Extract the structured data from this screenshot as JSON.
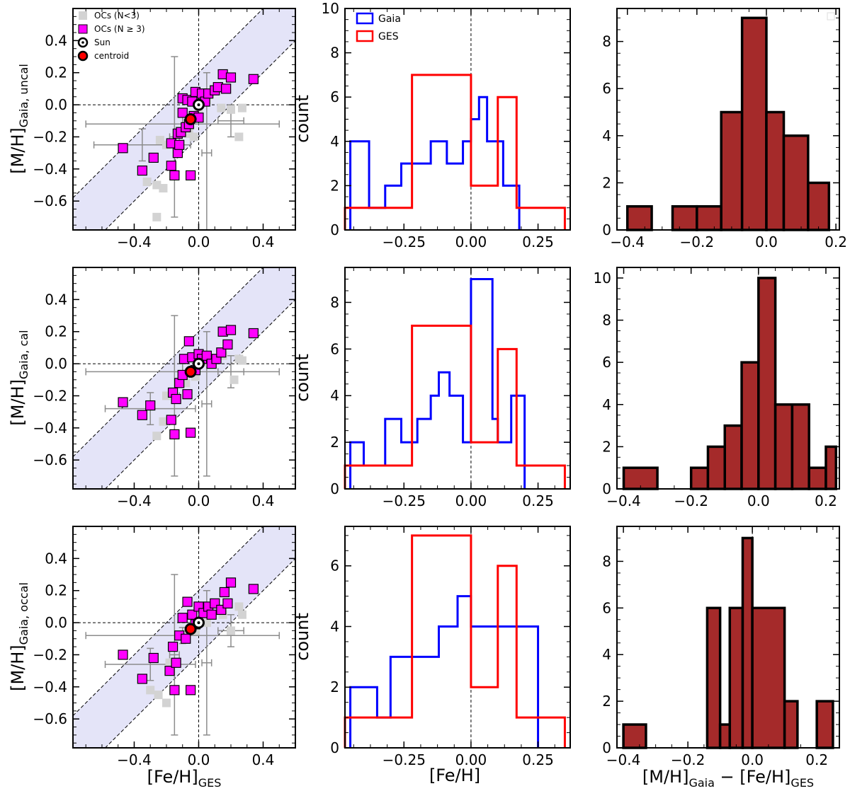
{
  "figure": {
    "rows": [
      {
        "ylabel_main": "[M/H]",
        "ylabel_sub": "Gaia, uncal"
      },
      {
        "ylabel_main": "[M/H]",
        "ylabel_sub": "Gaia, cal"
      },
      {
        "ylabel_main": "[M/H]",
        "ylabel_sub": "Gaia, occal"
      }
    ],
    "scatter_xlabel_main": "[Fe/H]",
    "scatter_xlabel_sub": "GES",
    "hist_xlabel": "[Fe/H]",
    "hist_ylabel": "count",
    "diff_xlabel": {
      "a": "[M/H]",
      "a_sub": "Gaia",
      "minus": " − ",
      "b": "[Fe/H]",
      "b_sub": "GES"
    }
  },
  "colors": {
    "magenta": "#ff00ff",
    "gray": "#d3d3d3",
    "errbar": "#8c8c8c",
    "band": "#e4e4f8",
    "gaia": "#0000ff",
    "ges": "#ff0000",
    "diff_fill": "#a52a2a"
  },
  "legends": {
    "scatter": [
      {
        "label": "OCs (N<3)",
        "marker": "gray-square"
      },
      {
        "label": "OCs (N ≥ 3)",
        "marker": "magenta-square"
      },
      {
        "label": "Sun",
        "marker": "sun-symbol"
      },
      {
        "label": "centroid",
        "marker": "red-circle"
      }
    ],
    "hist": [
      {
        "label": "Gaia",
        "color": "#0000ff"
      },
      {
        "label": "GES",
        "color": "#ff0000"
      }
    ]
  },
  "chart_data": [
    {
      "type": "scatter",
      "row": 0,
      "xlim": [
        -0.78,
        0.6
      ],
      "ylim": [
        -0.78,
        0.6
      ],
      "xticks": [
        -0.4,
        0.0,
        0.4
      ],
      "yticks": [
        -0.6,
        -0.4,
        -0.2,
        0.0,
        0.2,
        0.4
      ],
      "band_offsets": [
        -0.2,
        0.2
      ],
      "sun": [
        0.0,
        0.0
      ],
      "centroid": [
        -0.05,
        -0.09
      ],
      "magenta": [
        [
          -0.47,
          -0.27
        ],
        [
          -0.35,
          -0.41
        ],
        [
          -0.28,
          -0.33
        ],
        [
          -0.17,
          -0.38
        ],
        [
          -0.17,
          -0.24
        ],
        [
          -0.15,
          -0.44
        ],
        [
          -0.13,
          -0.3
        ],
        [
          -0.13,
          -0.18
        ],
        [
          -0.12,
          -0.25
        ],
        [
          -0.11,
          -0.17
        ],
        [
          -0.1,
          -0.05
        ],
        [
          -0.1,
          0.04
        ],
        [
          -0.08,
          -0.14
        ],
        [
          -0.07,
          0.03
        ],
        [
          -0.06,
          -0.12
        ],
        [
          -0.05,
          -0.44
        ],
        [
          -0.04,
          0.02
        ],
        [
          -0.03,
          -0.07
        ],
        [
          -0.02,
          0.08
        ],
        [
          0.0,
          -0.08
        ],
        [
          0.02,
          0.07
        ],
        [
          0.04,
          0.02
        ],
        [
          0.06,
          0.07
        ],
        [
          0.1,
          0.09
        ],
        [
          0.12,
          0.11
        ],
        [
          0.15,
          0.19
        ],
        [
          0.17,
          0.1
        ],
        [
          0.2,
          0.17
        ],
        [
          0.34,
          0.16
        ]
      ],
      "gray": [
        [
          -0.32,
          -0.48
        ],
        [
          -0.26,
          -0.5
        ],
        [
          -0.22,
          -0.52
        ],
        [
          -0.26,
          -0.7
        ],
        [
          -0.24,
          -0.22
        ],
        [
          -0.2,
          -0.25
        ],
        [
          -0.06,
          -0.18
        ],
        [
          -0.03,
          -0.2
        ],
        [
          0.0,
          -0.02
        ],
        [
          0.05,
          0.03
        ],
        [
          0.14,
          -0.02
        ],
        [
          0.2,
          -0.03
        ],
        [
          0.25,
          -0.2
        ],
        [
          0.27,
          -0.02
        ]
      ],
      "errbars": [
        [
          -0.1,
          -0.12,
          0.6,
          0.05
        ],
        [
          -0.15,
          -0.2,
          0.03,
          0.5
        ],
        [
          0.05,
          -0.3,
          0.03,
          0.5
        ],
        [
          -0.35,
          -0.25,
          0.3,
          0.1
        ],
        [
          0.2,
          -0.1,
          0.08,
          0.1
        ]
      ]
    },
    {
      "type": "scatter",
      "row": 1,
      "xlim": [
        -0.78,
        0.6
      ],
      "ylim": [
        -0.78,
        0.6
      ],
      "xticks": [
        -0.4,
        0.0,
        0.4
      ],
      "yticks": [
        -0.6,
        -0.4,
        -0.2,
        0.0,
        0.2,
        0.4
      ],
      "band_offsets": [
        -0.2,
        0.2
      ],
      "sun": [
        0.0,
        0.0
      ],
      "centroid": [
        -0.05,
        -0.05
      ],
      "magenta": [
        [
          -0.47,
          -0.24
        ],
        [
          -0.35,
          -0.32
        ],
        [
          -0.3,
          -0.26
        ],
        [
          -0.17,
          -0.35
        ],
        [
          -0.16,
          -0.18
        ],
        [
          -0.15,
          -0.44
        ],
        [
          -0.14,
          -0.22
        ],
        [
          -0.12,
          -0.12
        ],
        [
          -0.1,
          -0.07
        ],
        [
          -0.09,
          0.03
        ],
        [
          -0.07,
          -0.19
        ],
        [
          -0.06,
          0.14
        ],
        [
          -0.05,
          -0.43
        ],
        [
          -0.04,
          0.04
        ],
        [
          -0.02,
          -0.04
        ],
        [
          0.0,
          0.06
        ],
        [
          0.02,
          0.03
        ],
        [
          0.05,
          0.05
        ],
        [
          0.08,
          0.0
        ],
        [
          0.11,
          0.03
        ],
        [
          0.14,
          0.07
        ],
        [
          0.15,
          0.2
        ],
        [
          0.18,
          0.12
        ],
        [
          0.2,
          0.21
        ],
        [
          0.34,
          0.19
        ]
      ],
      "gray": [
        [
          -0.26,
          -0.45
        ],
        [
          -0.22,
          -0.36
        ],
        [
          -0.2,
          -0.2
        ],
        [
          -0.08,
          -0.12
        ],
        [
          -0.02,
          -0.08
        ],
        [
          0.05,
          0.01
        ],
        [
          0.15,
          0.05
        ],
        [
          0.22,
          -0.1
        ],
        [
          0.25,
          0.03
        ],
        [
          0.27,
          0.02
        ]
      ],
      "errbars": [
        [
          -0.1,
          -0.05,
          0.6,
          0.05
        ],
        [
          -0.15,
          -0.2,
          0.03,
          0.5
        ],
        [
          0.05,
          -0.25,
          0.03,
          0.45
        ],
        [
          -0.3,
          -0.28,
          0.28,
          0.1
        ],
        [
          0.2,
          -0.05,
          0.08,
          0.1
        ]
      ]
    },
    {
      "type": "scatter",
      "row": 2,
      "xlim": [
        -0.78,
        0.6
      ],
      "ylim": [
        -0.78,
        0.6
      ],
      "xticks": [
        -0.4,
        0.0,
        0.4
      ],
      "yticks": [
        -0.6,
        -0.4,
        -0.2,
        0.0,
        0.2,
        0.4
      ],
      "band_offsets": [
        -0.2,
        0.2
      ],
      "sun": [
        0.0,
        0.0
      ],
      "centroid": [
        -0.05,
        -0.04
      ],
      "magenta": [
        [
          -0.47,
          -0.2
        ],
        [
          -0.35,
          -0.35
        ],
        [
          -0.28,
          -0.22
        ],
        [
          -0.18,
          -0.3
        ],
        [
          -0.16,
          -0.15
        ],
        [
          -0.15,
          -0.42
        ],
        [
          -0.14,
          -0.25
        ],
        [
          -0.12,
          -0.08
        ],
        [
          -0.1,
          0.03
        ],
        [
          -0.08,
          -0.1
        ],
        [
          -0.07,
          0.13
        ],
        [
          -0.05,
          -0.42
        ],
        [
          -0.04,
          0.05
        ],
        [
          -0.02,
          -0.01
        ],
        [
          0.0,
          0.1
        ],
        [
          0.03,
          0.06
        ],
        [
          0.06,
          0.1
        ],
        [
          0.08,
          0.05
        ],
        [
          0.1,
          0.12
        ],
        [
          0.14,
          0.08
        ],
        [
          0.16,
          0.19
        ],
        [
          0.18,
          0.12
        ],
        [
          0.2,
          0.25
        ],
        [
          0.34,
          0.21
        ]
      ],
      "gray": [
        [
          -0.3,
          -0.42
        ],
        [
          -0.25,
          -0.45
        ],
        [
          -0.2,
          -0.5
        ],
        [
          -0.18,
          -0.25
        ],
        [
          -0.08,
          -0.1
        ],
        [
          -0.02,
          -0.05
        ],
        [
          0.05,
          0.0
        ],
        [
          0.15,
          0.05
        ],
        [
          0.2,
          -0.05
        ],
        [
          0.25,
          0.1
        ],
        [
          0.27,
          0.05
        ]
      ],
      "errbars": [
        [
          -0.1,
          -0.08,
          0.6,
          0.05
        ],
        [
          -0.15,
          -0.2,
          0.03,
          0.5
        ],
        [
          0.05,
          -0.25,
          0.03,
          0.45
        ],
        [
          -0.3,
          -0.26,
          0.28,
          0.1
        ],
        [
          0.2,
          -0.05,
          0.08,
          0.1
        ]
      ]
    },
    {
      "type": "histogram-step",
      "row": 0,
      "xlim": [
        -0.47,
        0.37
      ],
      "ylim": [
        0,
        10
      ],
      "xticks": [
        -0.25,
        0.0,
        0.25
      ],
      "xtick_labels": [
        "−0.25",
        "0.00",
        "0.25"
      ],
      "yticks": [
        0,
        2,
        4,
        6,
        8,
        10
      ],
      "vline": 0.0,
      "series": [
        {
          "name": "Gaia",
          "edges": [
            -0.45,
            -0.38,
            -0.32,
            -0.26,
            -0.21,
            -0.15,
            -0.09,
            -0.03,
            0.0,
            0.03,
            0.06,
            0.12,
            0.18
          ],
          "counts": [
            4,
            1,
            2,
            3,
            3,
            4,
            3,
            4,
            5,
            6,
            4,
            2
          ]
        },
        {
          "name": "GES",
          "edges": [
            -0.47,
            -0.22,
            0.0,
            0.03,
            0.1,
            0.17,
            0.35
          ],
          "counts": [
            1,
            7,
            2,
            2,
            6,
            1
          ]
        }
      ]
    },
    {
      "type": "histogram-step",
      "row": 1,
      "xlim": [
        -0.47,
        0.37
      ],
      "ylim": [
        0,
        9.5
      ],
      "xticks": [
        -0.25,
        0.0,
        0.25
      ],
      "xtick_labels": [
        "−0.25",
        "0.00",
        "0.25"
      ],
      "yticks": [
        0,
        2,
        4,
        6,
        8
      ],
      "vline": 0.0,
      "series": [
        {
          "name": "Gaia",
          "edges": [
            -0.45,
            -0.4,
            -0.32,
            -0.26,
            -0.2,
            -0.15,
            -0.12,
            -0.08,
            -0.03,
            0.0,
            0.08,
            0.1,
            0.15,
            0.2
          ],
          "counts": [
            2,
            1,
            3,
            2,
            3,
            4,
            5,
            4,
            2,
            9,
            3,
            2,
            4
          ]
        },
        {
          "name": "GES",
          "edges": [
            -0.47,
            -0.22,
            0.0,
            0.03,
            0.1,
            0.17,
            0.35
          ],
          "counts": [
            1,
            7,
            2,
            2,
            6,
            1
          ]
        }
      ]
    },
    {
      "type": "histogram-step",
      "row": 2,
      "xlim": [
        -0.47,
        0.37
      ],
      "ylim": [
        0,
        7.3
      ],
      "xticks": [
        -0.25,
        0.0,
        0.25
      ],
      "xtick_labels": [
        "−0.25",
        "0.00",
        "0.25"
      ],
      "yticks": [
        0,
        2,
        4,
        6
      ],
      "vline": 0.0,
      "series": [
        {
          "name": "Gaia",
          "edges": [
            -0.45,
            -0.42,
            -0.35,
            -0.3,
            -0.2,
            -0.12,
            -0.05,
            0.0,
            0.05,
            0.15,
            0.25
          ],
          "counts": [
            2,
            2,
            1,
            3,
            3,
            4,
            5,
            4,
            4,
            4
          ]
        },
        {
          "name": "GES",
          "edges": [
            -0.47,
            -0.22,
            0.0,
            0.02,
            0.1,
            0.17,
            0.35
          ],
          "counts": [
            1,
            7,
            2,
            2,
            6,
            1
          ]
        }
      ]
    },
    {
      "type": "histogram-filled",
      "row": 0,
      "xlim": [
        -0.43,
        0.21
      ],
      "ylim": [
        0,
        9.4
      ],
      "xticks": [
        -0.4,
        -0.2,
        0.0,
        0.2
      ],
      "xtick_labels": [
        "−0.4",
        "−0.2",
        "0.0",
        "0.2"
      ],
      "yticks": [
        0,
        2,
        4,
        6,
        8
      ],
      "vline": 0.0,
      "edges": [
        -0.4,
        -0.33,
        -0.27,
        -0.2,
        -0.13,
        -0.07,
        0.0,
        0.05,
        0.12,
        0.18
      ],
      "counts": [
        1,
        0,
        1,
        1,
        5,
        9,
        5,
        4,
        2
      ]
    },
    {
      "type": "histogram-filled",
      "row": 1,
      "xlim": [
        -0.42,
        0.24
      ],
      "ylim": [
        0,
        10.5
      ],
      "xticks": [
        -0.4,
        -0.2,
        0.0,
        0.2
      ],
      "xtick_labels": [
        "−0.4",
        "−0.2",
        "0.0",
        "0.2"
      ],
      "yticks": [
        0,
        2,
        4,
        6,
        8,
        10
      ],
      "vline": 0.0,
      "edges": [
        -0.4,
        -0.3,
        -0.2,
        -0.15,
        -0.1,
        -0.05,
        0.0,
        0.05,
        0.1,
        0.15,
        0.2,
        0.23
      ],
      "counts": [
        1,
        0,
        1,
        2,
        3,
        6,
        10,
        4,
        4,
        1,
        2
      ]
    },
    {
      "type": "histogram-filled",
      "row": 2,
      "xlim": [
        -0.42,
        0.27
      ],
      "ylim": [
        0,
        9.5
      ],
      "xticks": [
        -0.4,
        -0.2,
        0.0,
        0.2
      ],
      "xtick_labels": [
        "−0.4",
        "−0.2",
        "0.0",
        "0.2"
      ],
      "yticks": [
        0,
        2,
        4,
        6,
        8
      ],
      "vline": 0.0,
      "edges": [
        -0.4,
        -0.33,
        -0.14,
        -0.1,
        -0.07,
        -0.03,
        0.0,
        0.1,
        0.14,
        0.2,
        0.25
      ],
      "counts": [
        1,
        0,
        6,
        1,
        6,
        9,
        6,
        2,
        0,
        2
      ]
    }
  ]
}
